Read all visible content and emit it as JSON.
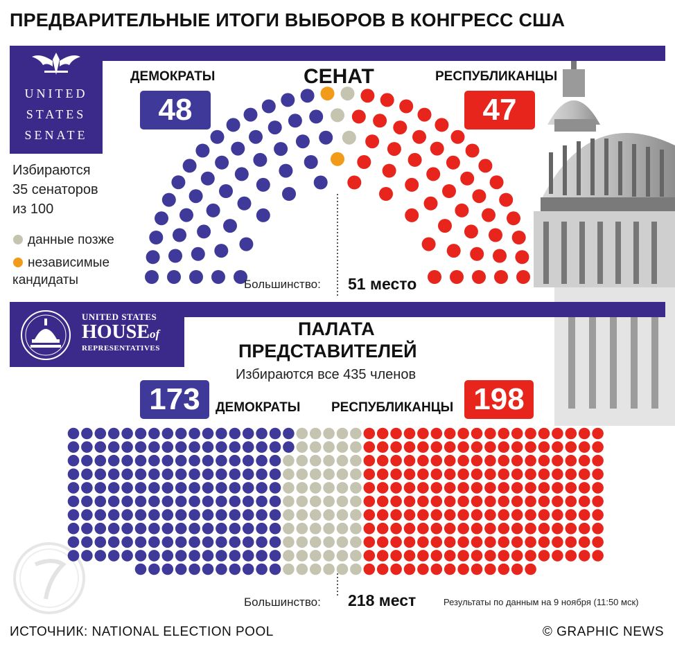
{
  "title": "ПРЕДВАРИТЕЛЬНЫЕ ИТОГИ ВЫБОРОВ В КОНГРЕСС США",
  "colors": {
    "dem": "#3f3a9a",
    "rep": "#e8251c",
    "pending": "#c5c4b0",
    "ind": "#f29a1a",
    "brand": "#3b2a8a"
  },
  "senate": {
    "logo": {
      "line1": "UNITED",
      "line2": "STATES",
      "line3": "SENATE",
      "icon": "eagle-icon"
    },
    "heading": "СЕНАТ",
    "dem_label": "ДЕМОКРАТЫ",
    "rep_label": "РЕСПУБЛИКАНЦЫ",
    "dem_count": "48",
    "rep_count": "47",
    "elected_line1": "Избираются",
    "elected_line2": "35 сенаторов",
    "elected_line3": "из 100",
    "legend_pending": "данные позже",
    "legend_ind_line1": "независимые",
    "legend_ind_line2": "кандидаты",
    "majority_label": "Большинство:",
    "majority_value": "51 место",
    "seats": {
      "dem": 48,
      "ind": 2,
      "pending": 3,
      "rep": 47,
      "total": 100
    }
  },
  "house": {
    "logo": {
      "line1": "UNITED STATES",
      "line2": "HOUSE",
      "line2b": "of",
      "line3": "REPRESENTATIVES",
      "icon": "capitol-dome-icon"
    },
    "heading_line1": "ПАЛАТА",
    "heading_line2": "ПРЕДСТАВИТЕЛЕЙ",
    "subtitle": "Избираются все 435 членов",
    "dem_count": "173",
    "rep_count": "198",
    "dem_label": "ДЕМОКРАТЫ",
    "rep_label": "РЕСПУБЛИКАНЦЫ",
    "majority_label": "Большинство:",
    "majority_value": "218 мест",
    "results_note": "Результаты по данным на 9 ноября (11:50 мск)",
    "seats": {
      "dem": 173,
      "pending": 64,
      "rep": 198,
      "total": 435
    }
  },
  "footer": {
    "source": "ИСТОЧНИК: NATIONAL ELECTION POOL",
    "credit": "© GRAPHIC NEWS"
  }
}
